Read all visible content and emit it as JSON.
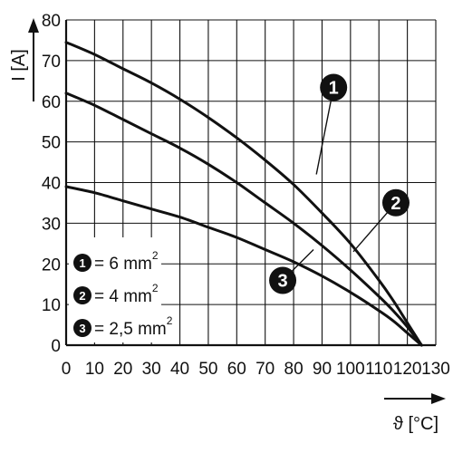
{
  "chart_data": {
    "type": "line",
    "xlabel": "ϑ [°C]",
    "ylabel": "I [A]",
    "xlim": [
      0,
      130
    ],
    "ylim": [
      0,
      80
    ],
    "x_ticks": [
      "0",
      "10",
      "20",
      "30",
      "40",
      "50",
      "60",
      "70",
      "80",
      "90",
      "100",
      "110",
      "120",
      "130"
    ],
    "y_ticks": [
      "0",
      "10",
      "20",
      "30",
      "40",
      "50",
      "60",
      "70",
      "80"
    ],
    "grid": true,
    "legend_position": "bottom-left",
    "legend": [
      {
        "marker": "1",
        "text": "= 6 mm",
        "sup": "2"
      },
      {
        "marker": "2",
        "text": "= 4 mm",
        "sup": "2"
      },
      {
        "marker": "3",
        "text": "= 2,5 mm",
        "sup": "2"
      }
    ],
    "series": [
      {
        "marker": "1",
        "x": [
          0,
          10,
          20,
          30,
          40,
          50,
          60,
          70,
          80,
          90,
          100,
          110,
          115,
          120,
          125
        ],
        "y": [
          74.5,
          71.5,
          68,
          64.5,
          60.5,
          56,
          51,
          45.5,
          39.5,
          32.5,
          25,
          16,
          11,
          5.5,
          0
        ]
      },
      {
        "marker": "2",
        "x": [
          0,
          10,
          20,
          30,
          40,
          50,
          60,
          70,
          80,
          90,
          100,
          110,
          115,
          120,
          125
        ],
        "y": [
          62,
          59,
          55.5,
          52,
          48.5,
          44.5,
          40,
          35,
          30,
          24.5,
          18.5,
          12,
          8.5,
          4.5,
          0
        ]
      },
      {
        "marker": "3",
        "x": [
          0,
          10,
          20,
          30,
          40,
          50,
          60,
          70,
          80,
          90,
          100,
          110,
          115,
          120,
          125
        ],
        "y": [
          39,
          37.5,
          35.5,
          33.5,
          31.5,
          29,
          26.5,
          23.5,
          20.5,
          17,
          13,
          8.5,
          6,
          3,
          0
        ]
      }
    ],
    "callouts": [
      {
        "marker": "1",
        "x": 88,
        "y": 42
      },
      {
        "marker": "2",
        "x": 101,
        "y": 23
      },
      {
        "marker": "3",
        "x": 87,
        "y": 23.5
      }
    ]
  }
}
